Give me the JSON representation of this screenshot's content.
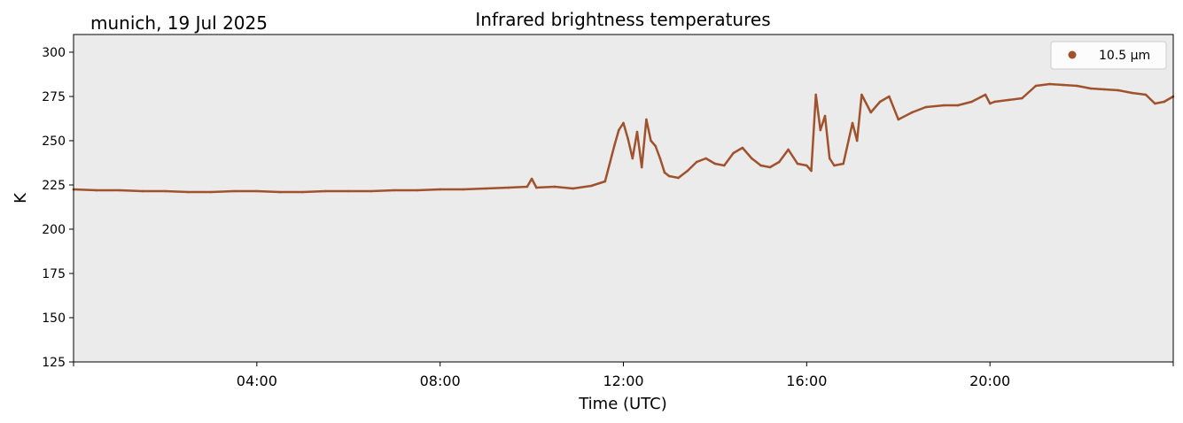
{
  "chart_data": {
    "type": "line",
    "title": "Infrared brightness temperatures",
    "subtitle": "munich, 19 Jul 2025",
    "xlabel": "Time (UTC)",
    "ylabel": "K",
    "xlim_hours": [
      0,
      24
    ],
    "ylim": [
      125,
      310
    ],
    "x_ticks": [
      {
        "hour": 4,
        "label": "04:00"
      },
      {
        "hour": 8,
        "label": "08:00"
      },
      {
        "hour": 12,
        "label": "12:00"
      },
      {
        "hour": 16,
        "label": "16:00"
      },
      {
        "hour": 20,
        "label": "20:00"
      }
    ],
    "y_ticks": [
      125,
      150,
      175,
      200,
      225,
      250,
      275,
      300
    ],
    "grid": false,
    "legend_position": "top-right",
    "plot_background": "#ebebeb",
    "series": [
      {
        "name": "10.5 µm",
        "color": "#a0522d",
        "x_hours": [
          0.0,
          0.5,
          1.0,
          1.5,
          2.0,
          2.5,
          3.0,
          3.5,
          4.0,
          4.5,
          5.0,
          5.5,
          6.0,
          6.5,
          7.0,
          7.5,
          8.0,
          8.5,
          9.0,
          9.5,
          9.9,
          10.0,
          10.1,
          10.5,
          10.9,
          11.3,
          11.6,
          11.8,
          11.9,
          12.0,
          12.1,
          12.2,
          12.3,
          12.4,
          12.5,
          12.6,
          12.7,
          12.8,
          12.9,
          13.0,
          13.2,
          13.4,
          13.6,
          13.8,
          14.0,
          14.2,
          14.4,
          14.6,
          14.8,
          15.0,
          15.2,
          15.4,
          15.6,
          15.8,
          16.0,
          16.1,
          16.2,
          16.3,
          16.4,
          16.5,
          16.6,
          16.8,
          17.0,
          17.1,
          17.2,
          17.4,
          17.6,
          17.8,
          18.0,
          18.3,
          18.6,
          19.0,
          19.3,
          19.6,
          19.9,
          20.0,
          20.1,
          20.4,
          20.7,
          21.0,
          21.3,
          21.6,
          21.9,
          22.2,
          22.5,
          22.8,
          23.1,
          23.4,
          23.6,
          23.8,
          24.0
        ],
        "y_values": [
          222.5,
          222.0,
          222.0,
          221.5,
          221.5,
          221.0,
          221.0,
          221.5,
          221.5,
          221.0,
          221.0,
          221.5,
          221.5,
          221.5,
          222.0,
          222.0,
          222.5,
          222.5,
          223.0,
          223.5,
          224.0,
          228.5,
          223.5,
          224.0,
          223.0,
          224.5,
          227.0,
          247.0,
          256.0,
          260.0,
          251.0,
          240.0,
          255.0,
          235.0,
          262.0,
          250.0,
          247.0,
          240.0,
          232.0,
          230.0,
          229.0,
          233.0,
          238.0,
          240.0,
          237.0,
          236.0,
          243.0,
          246.0,
          240.0,
          236.0,
          235.0,
          238.0,
          245.0,
          237.0,
          236.0,
          233.0,
          276.0,
          256.0,
          264.0,
          240.0,
          236.0,
          237.0,
          260.0,
          250.0,
          276.0,
          266.0,
          272.0,
          275.0,
          262.0,
          266.0,
          269.0,
          270.0,
          270.0,
          272.0,
          276.0,
          271.0,
          272.0,
          273.0,
          274.0,
          281.0,
          282.0,
          281.5,
          281.0,
          279.5,
          279.0,
          278.5,
          277.0,
          276.0,
          271.0,
          272.0,
          275.0
        ]
      }
    ]
  }
}
